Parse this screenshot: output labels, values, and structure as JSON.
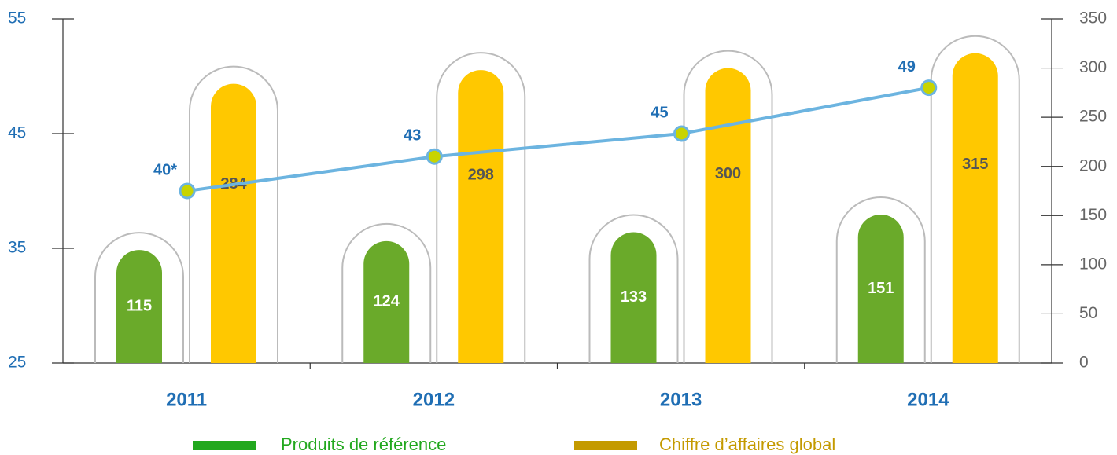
{
  "chart_data": {
    "type": "bar",
    "categories": [
      "2011",
      "2012",
      "2013",
      "2014"
    ],
    "series": [
      {
        "name": "Produits de référence",
        "color": "#6aaa2a",
        "legend_color": "#22a81e",
        "values": [
          115,
          124,
          133,
          151
        ],
        "axis": "y2"
      },
      {
        "name": "Chiffre d’affaires global",
        "color": "#ffc800",
        "legend_color": "#c49a00",
        "values": [
          284,
          298,
          300,
          315
        ],
        "axis": "y2"
      },
      {
        "type": "line",
        "color": "#6cb4e0",
        "values": [
          40,
          43,
          45,
          49
        ],
        "value_labels": [
          "40*",
          "43",
          "45",
          "49"
        ],
        "axis": "y"
      }
    ],
    "ylim": [
      25,
      55
    ],
    "yticks": [
      25,
      35,
      45,
      55
    ],
    "y2lim": [
      0,
      350
    ],
    "y2ticks": [
      0,
      50,
      100,
      150,
      200,
      250,
      300,
      350
    ],
    "grid": false
  }
}
